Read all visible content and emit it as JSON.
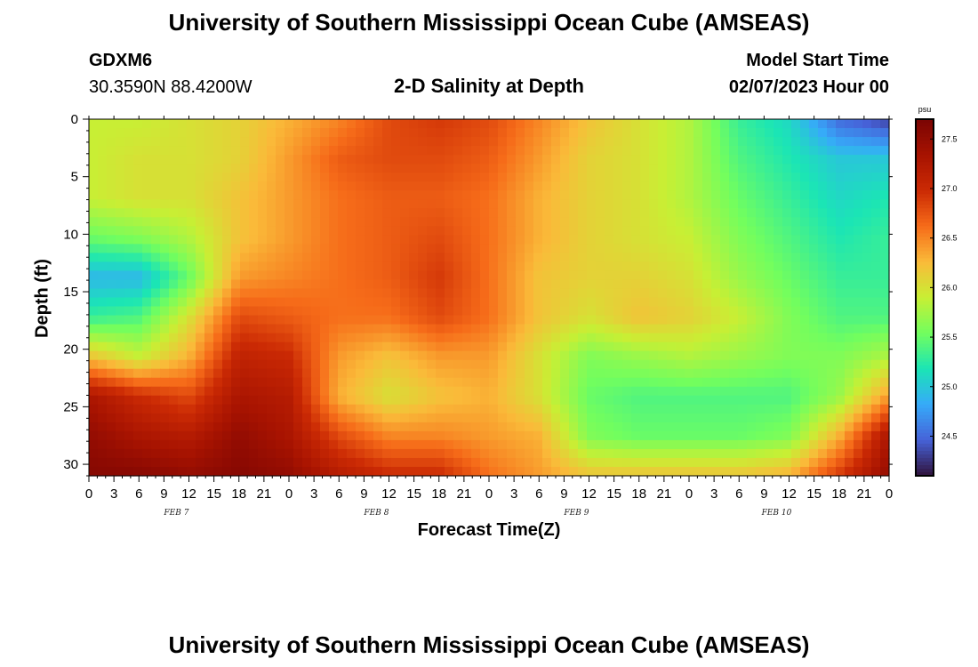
{
  "header": {
    "title": "University of Southern Mississippi Ocean Cube (AMSEAS)",
    "station_id": "GDXM6",
    "coords": "30.3590N  88.4200W",
    "chart_title": "2-D Salinity at Depth",
    "model_start_label": "Model Start Time",
    "model_start_value": "02/07/2023 Hour 00"
  },
  "footer": {
    "title": "University of Southern Mississippi Ocean Cube (AMSEAS)"
  },
  "chart_data": {
    "type": "heatmap",
    "title": "2-D Salinity at Depth",
    "xlabel": "Forecast Time(Z)",
    "ylabel": "Depth (ft)",
    "x_hours": [
      0,
      3,
      6,
      9,
      12,
      15,
      18,
      21,
      24,
      27,
      30,
      33,
      36,
      39,
      42,
      45,
      48,
      51,
      54,
      57,
      60,
      63,
      66,
      69,
      72,
      75,
      78,
      81,
      84,
      87,
      90,
      93,
      96
    ],
    "x_tick_labels": [
      "0",
      "3",
      "6",
      "9",
      "12",
      "15",
      "18",
      "21",
      "0",
      "3",
      "6",
      "9",
      "12",
      "15",
      "18",
      "21",
      "0",
      "3",
      "6",
      "9",
      "12",
      "15",
      "18",
      "21",
      "0",
      "3",
      "6",
      "9",
      "12",
      "15",
      "18",
      "21",
      "0"
    ],
    "date_labels": [
      {
        "label": "FEB 7",
        "hour": 10.5
      },
      {
        "label": "FEB 8",
        "hour": 34.5
      },
      {
        "label": "FEB 9",
        "hour": 58.5
      },
      {
        "label": "FEB 10",
        "hour": 82.5
      }
    ],
    "depths_ft": [
      0,
      5,
      10,
      15,
      20,
      25,
      30
    ],
    "y_tick_labels": [
      "0",
      "5",
      "10",
      "15",
      "20",
      "25",
      "30"
    ],
    "xlim": [
      0,
      96
    ],
    "ylim": [
      31,
      0
    ],
    "colorbar": {
      "unit": "psu",
      "min": 24.1,
      "max": 27.7,
      "ticks": [
        24.5,
        25.0,
        25.5,
        26.0,
        26.5,
        27.0,
        27.5
      ],
      "tick_labels": [
        "24.5",
        "25.0",
        "25.5",
        "26.0",
        "26.5",
        "27.0",
        "27.5"
      ]
    },
    "salinity_psu": [
      [
        25.9,
        25.9,
        26.0,
        26.1,
        26.3,
        26.5,
        26.8,
        26.9,
        26.8,
        26.5,
        26.2,
        26.0,
        25.8,
        25.3,
        25.1,
        24.5,
        24.3
      ],
      [
        25.9,
        26.0,
        26.0,
        26.1,
        26.4,
        26.7,
        26.8,
        26.8,
        26.7,
        26.4,
        26.1,
        26.0,
        25.8,
        25.4,
        25.2,
        25.0,
        25.0
      ],
      [
        25.9,
        26.0,
        26.0,
        26.2,
        26.4,
        26.6,
        26.7,
        26.7,
        26.6,
        26.3,
        26.1,
        26.0,
        25.8,
        25.5,
        25.3,
        25.1,
        25.2
      ],
      [
        25.5,
        25.6,
        25.8,
        26.2,
        26.4,
        26.6,
        26.7,
        26.8,
        26.6,
        26.3,
        26.1,
        26.0,
        25.9,
        25.6,
        25.4,
        25.2,
        25.3
      ],
      [
        24.9,
        24.9,
        25.5,
        26.4,
        26.5,
        26.6,
        26.7,
        26.9,
        26.6,
        26.2,
        26.1,
        26.1,
        26.0,
        25.7,
        25.5,
        25.3,
        25.3
      ],
      [
        25.3,
        25.4,
        26.0,
        26.8,
        26.7,
        26.6,
        26.6,
        26.8,
        26.6,
        26.2,
        26.0,
        26.2,
        26.1,
        25.9,
        25.6,
        25.4,
        25.4
      ],
      [
        26.2,
        25.9,
        26.3,
        27.1,
        27.0,
        26.4,
        26.2,
        26.4,
        26.4,
        26.0,
        25.6,
        25.7,
        25.8,
        25.7,
        25.6,
        25.6,
        25.8
      ],
      [
        27.3,
        27.0,
        26.8,
        27.3,
        27.2,
        26.3,
        26.0,
        26.2,
        26.3,
        26.0,
        25.5,
        25.4,
        25.4,
        25.4,
        25.4,
        25.7,
        26.4
      ],
      [
        27.5,
        27.3,
        27.2,
        27.5,
        27.3,
        26.8,
        26.5,
        26.5,
        26.4,
        26.3,
        25.6,
        25.5,
        25.5,
        25.5,
        25.6,
        26.3,
        27.3
      ],
      [
        27.6,
        27.6,
        27.5,
        27.6,
        27.5,
        27.2,
        27.0,
        27.0,
        26.6,
        26.4,
        26.2,
        26.2,
        26.2,
        26.2,
        26.3,
        26.9,
        27.5
      ]
    ]
  }
}
